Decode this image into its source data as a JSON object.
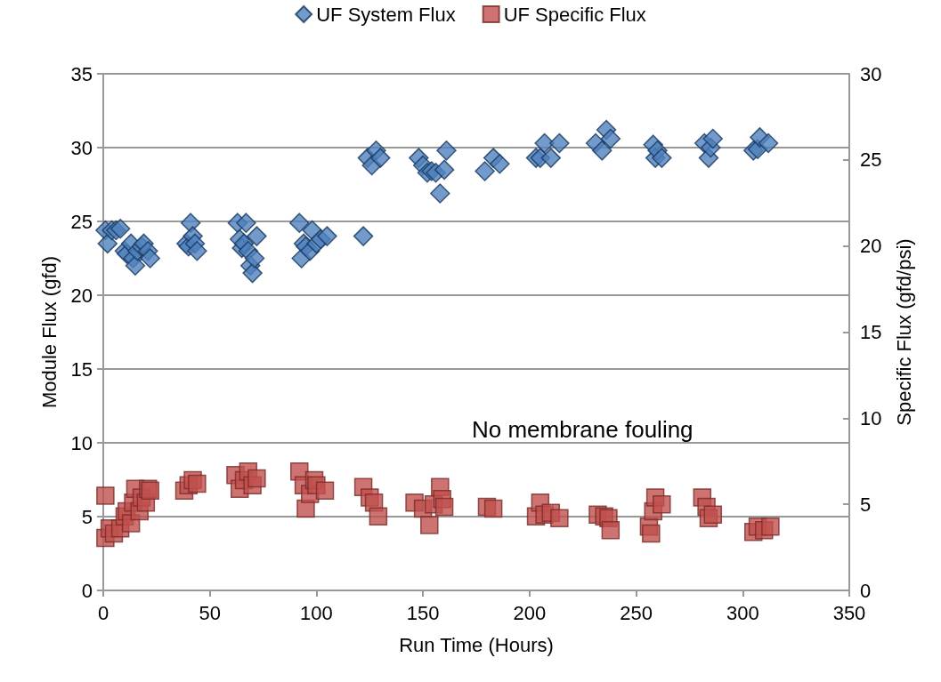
{
  "chart_data": {
    "type": "scatter",
    "xlabel": "Run Time (Hours)",
    "ylabel": "Module Flux (gfd)",
    "y2label": "Specific Flux (gfd/psi)",
    "xlim": [
      0,
      350
    ],
    "xticks": [
      0,
      50,
      100,
      150,
      200,
      250,
      300,
      350
    ],
    "ylim": [
      0,
      35
    ],
    "yticks": [
      0,
      5,
      10,
      15,
      20,
      25,
      30,
      35
    ],
    "y2lim": [
      0,
      30
    ],
    "y2ticks": [
      0,
      5,
      10,
      15,
      20,
      25,
      30
    ],
    "grid": "y",
    "legend": "top",
    "annotations": [
      "No membrane fouling"
    ],
    "series": [
      {
        "name": "UF System Flux",
        "color": "#4f81bd",
        "marker": "diamond",
        "x": [
          1,
          2,
          4,
          6,
          8,
          10,
          11,
          13,
          14,
          15,
          16,
          18,
          19,
          21,
          22,
          39,
          40,
          41,
          42,
          43,
          44,
          63,
          64,
          65,
          66,
          67,
          68,
          69,
          70,
          71,
          72,
          92,
          93,
          94,
          95,
          97,
          98,
          100,
          102,
          105,
          122,
          124,
          126,
          128,
          130,
          148,
          150,
          152,
          154,
          156,
          158,
          160,
          161,
          179,
          183,
          186,
          203,
          205,
          207,
          210,
          214,
          231,
          234,
          236,
          238,
          258,
          259,
          260,
          262,
          282,
          284,
          285,
          286,
          305,
          307,
          308,
          312
        ],
        "values": [
          24.4,
          23.5,
          24.4,
          24.4,
          24.5,
          23.0,
          22.8,
          23.5,
          22.5,
          22.0,
          23.0,
          23.3,
          23.5,
          23.0,
          22.5,
          23.5,
          23.3,
          24.9,
          24.0,
          23.5,
          23.0,
          24.9,
          23.8,
          23.2,
          23.5,
          24.9,
          23.0,
          22.0,
          21.5,
          22.5,
          24.0,
          24.9,
          22.5,
          23.5,
          23.3,
          23.0,
          24.4,
          23.5,
          23.8,
          24.0,
          24.0,
          29.3,
          28.8,
          29.8,
          29.3,
          29.3,
          28.8,
          28.3,
          28.4,
          28.3,
          26.9,
          28.5,
          29.8,
          28.4,
          29.3,
          28.9,
          29.3,
          29.3,
          30.3,
          29.3,
          30.3,
          30.3,
          29.8,
          31.2,
          30.6,
          30.2,
          29.3,
          29.8,
          29.3,
          30.3,
          29.3,
          30.0,
          30.6,
          29.8,
          29.9,
          30.7,
          30.3
        ]
      },
      {
        "name": "UF Specific Flux",
        "color": "#c0504d",
        "marker": "square",
        "axis": "y2",
        "x": [
          1,
          1,
          3,
          5,
          8,
          10,
          11,
          13,
          14,
          15,
          17,
          18,
          20,
          21,
          22,
          38,
          40,
          42,
          44,
          62,
          64,
          66,
          68,
          70,
          72,
          92,
          94,
          95,
          97,
          99,
          100,
          104,
          122,
          125,
          127,
          129,
          146,
          150,
          153,
          155,
          158,
          159,
          160,
          180,
          183,
          203,
          205,
          207,
          210,
          214,
          232,
          235,
          237,
          238,
          256,
          257,
          258,
          259,
          262,
          281,
          283,
          284,
          286,
          305,
          307,
          310,
          313
        ],
        "values": [
          3.05,
          5.5,
          3.6,
          3.3,
          3.6,
          4.3,
          4.6,
          3.9,
          5.1,
          5.9,
          4.6,
          5.4,
          5.1,
          5.9,
          5.8,
          5.8,
          6.1,
          6.4,
          6.2,
          6.7,
          5.9,
          6.4,
          6.9,
          6.1,
          6.5,
          6.9,
          6.1,
          4.75,
          5.6,
          6.4,
          6.1,
          5.8,
          6.0,
          5.4,
          5.1,
          4.3,
          5.1,
          4.75,
          3.8,
          5.0,
          6.0,
          5.3,
          4.85,
          4.85,
          4.75,
          4.3,
          5.1,
          4.4,
          4.5,
          4.2,
          4.4,
          4.3,
          4.2,
          3.5,
          3.7,
          3.3,
          4.6,
          5.4,
          5.0,
          5.4,
          4.85,
          4.2,
          4.4,
          3.4,
          3.7,
          3.5,
          3.7
        ]
      }
    ]
  }
}
